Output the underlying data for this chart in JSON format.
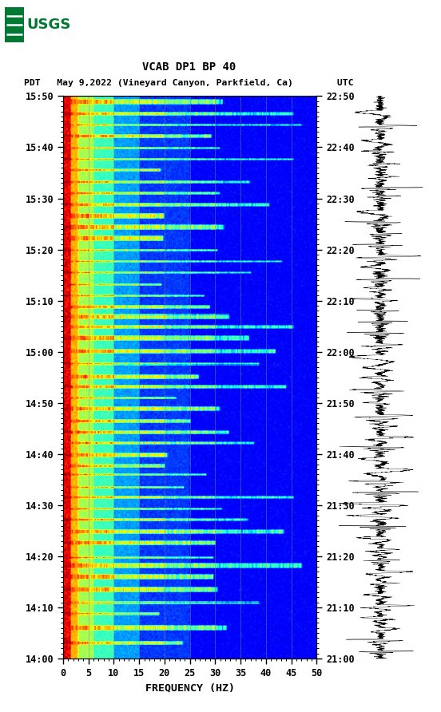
{
  "title_line1": "VCAB DP1 BP 40",
  "title_line2": "PDT   May 9,2022 (Vineyard Canyon, Parkfield, Ca)        UTC",
  "xlabel": "FREQUENCY (HZ)",
  "freq_min": 0,
  "freq_max": 50,
  "time_labels_pdt": [
    "14:00",
    "14:10",
    "14:20",
    "14:30",
    "14:40",
    "14:50",
    "15:00",
    "15:10",
    "15:20",
    "15:30",
    "15:40",
    "15:50"
  ],
  "time_labels_utc": [
    "21:00",
    "21:10",
    "21:20",
    "21:30",
    "21:40",
    "21:50",
    "22:00",
    "22:10",
    "22:20",
    "22:30",
    "22:40",
    "22:50"
  ],
  "xticks": [
    0,
    5,
    10,
    15,
    20,
    25,
    30,
    35,
    40,
    45,
    50
  ],
  "vertical_line_freqs": [
    5,
    10,
    15,
    20,
    25,
    30,
    35,
    40,
    45
  ],
  "colormap": "jet",
  "fig_bg": "#ffffff",
  "usgs_color": "#007a33",
  "seed": 12345,
  "n_time": 660,
  "n_freq": 500,
  "event_rows": [
    18,
    35,
    52,
    65,
    80,
    95,
    108,
    118,
    135,
    148,
    162,
    175,
    188,
    200,
    215,
    225,
    238,
    252,
    265,
    278,
    292,
    305,
    318,
    330,
    345,
    360,
    375,
    388,
    400,
    412,
    425,
    438,
    452,
    465,
    478,
    492,
    505,
    518,
    532,
    545,
    558,
    572,
    585,
    598,
    612,
    625,
    638,
    652
  ]
}
